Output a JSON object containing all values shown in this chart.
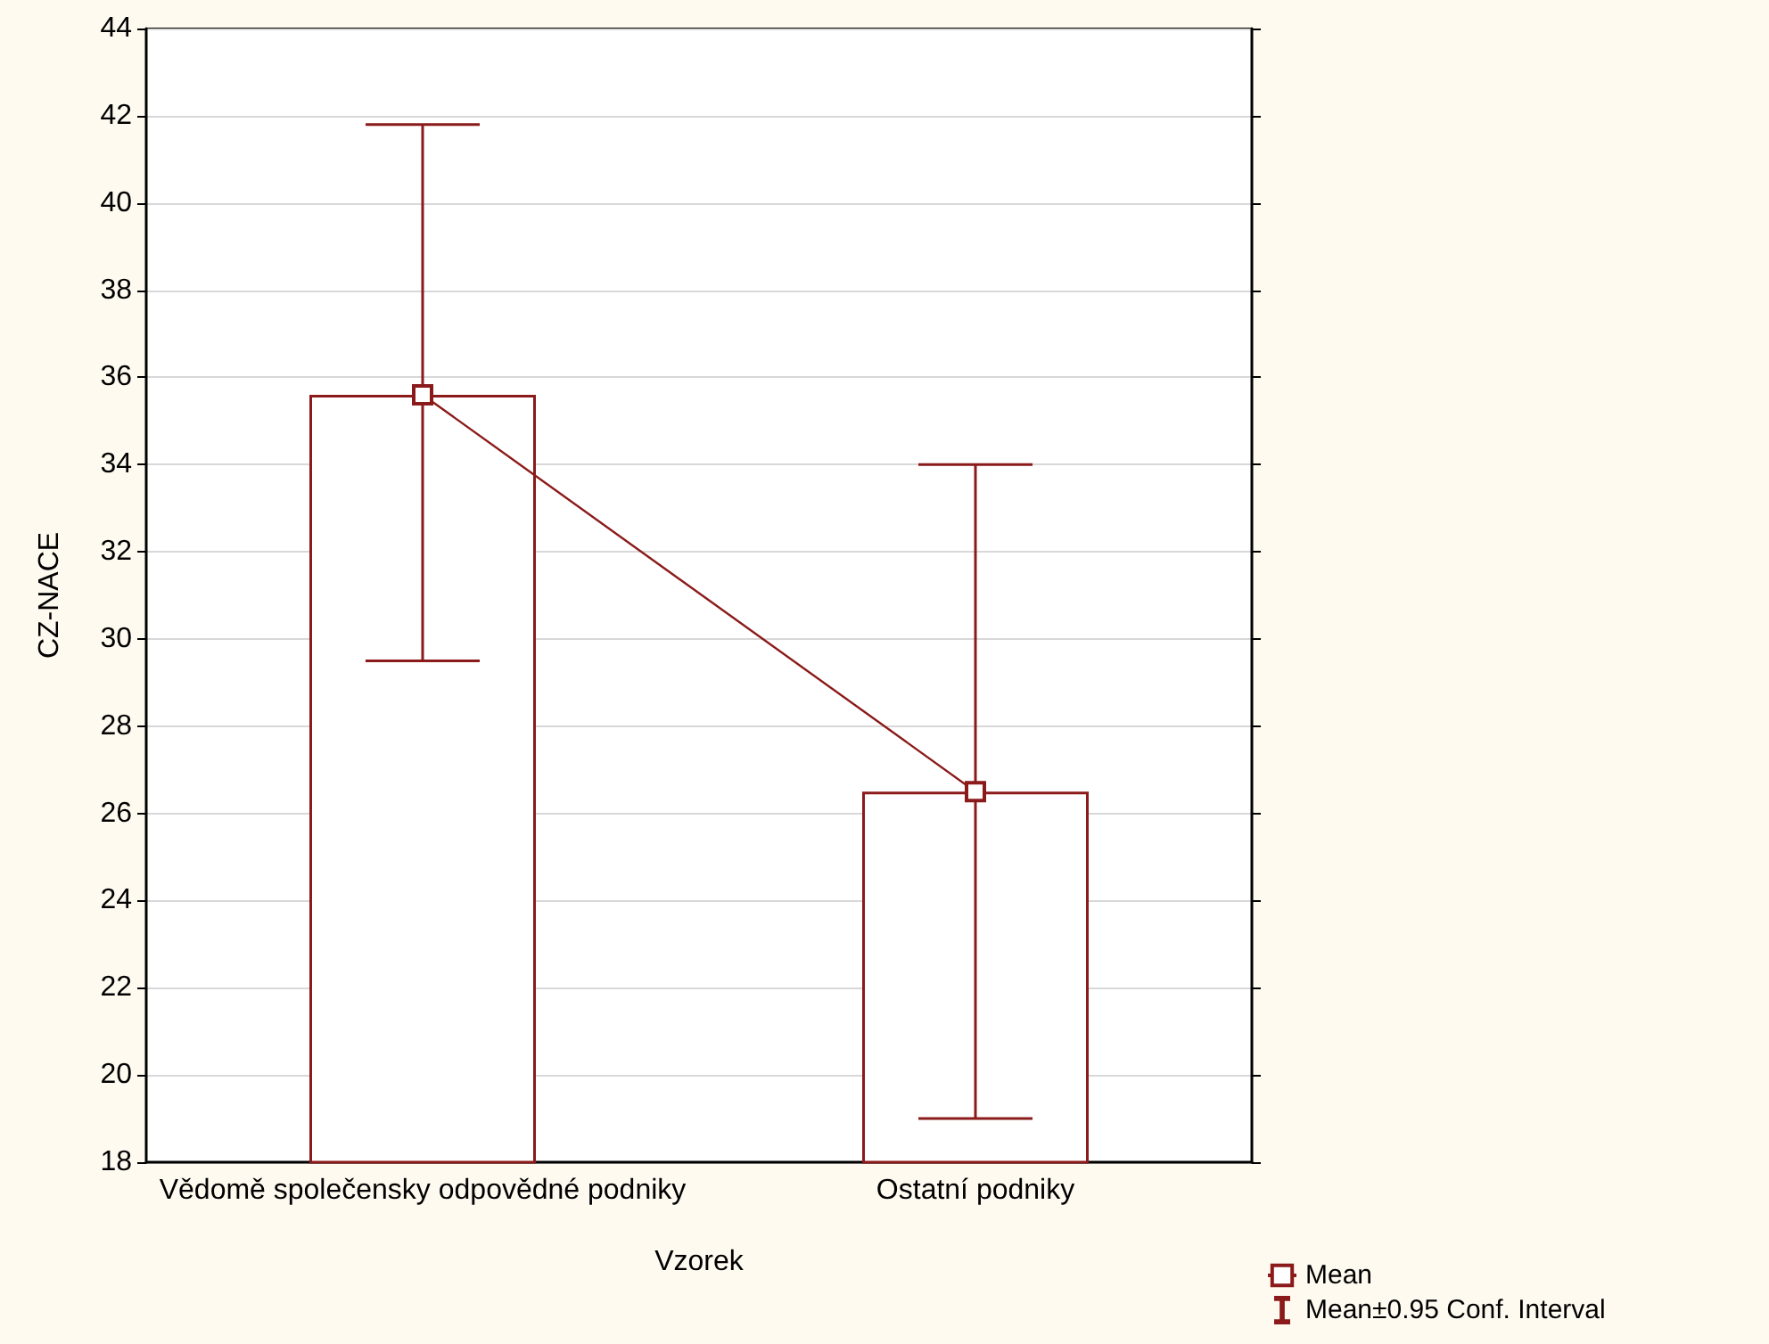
{
  "chart_data": {
    "type": "bar",
    "xlabel": "Vzorek",
    "ylabel": "CZ-NACE",
    "categories": [
      "Vědomě společensky odpovědné podniky",
      "Ostatní podniky"
    ],
    "series": [
      {
        "name": "Mean",
        "type": "line",
        "color": "#8b1a1a",
        "values": [
          35.6,
          26.5
        ]
      },
      {
        "name": "Mean±0.95 Conf. Interval",
        "color": "#8b1a1a",
        "values": [
          35.6,
          26.5
        ],
        "errors": [
          [
            29.5,
            41.8
          ],
          [
            19.0,
            34.0
          ]
        ]
      }
    ],
    "ylim": [
      18,
      44
    ],
    "yticks": [
      18,
      20,
      22,
      24,
      26,
      28,
      30,
      32,
      34,
      36,
      38,
      40,
      42,
      44
    ],
    "grid": "y",
    "legend": "bottom right",
    "marker": "square"
  }
}
